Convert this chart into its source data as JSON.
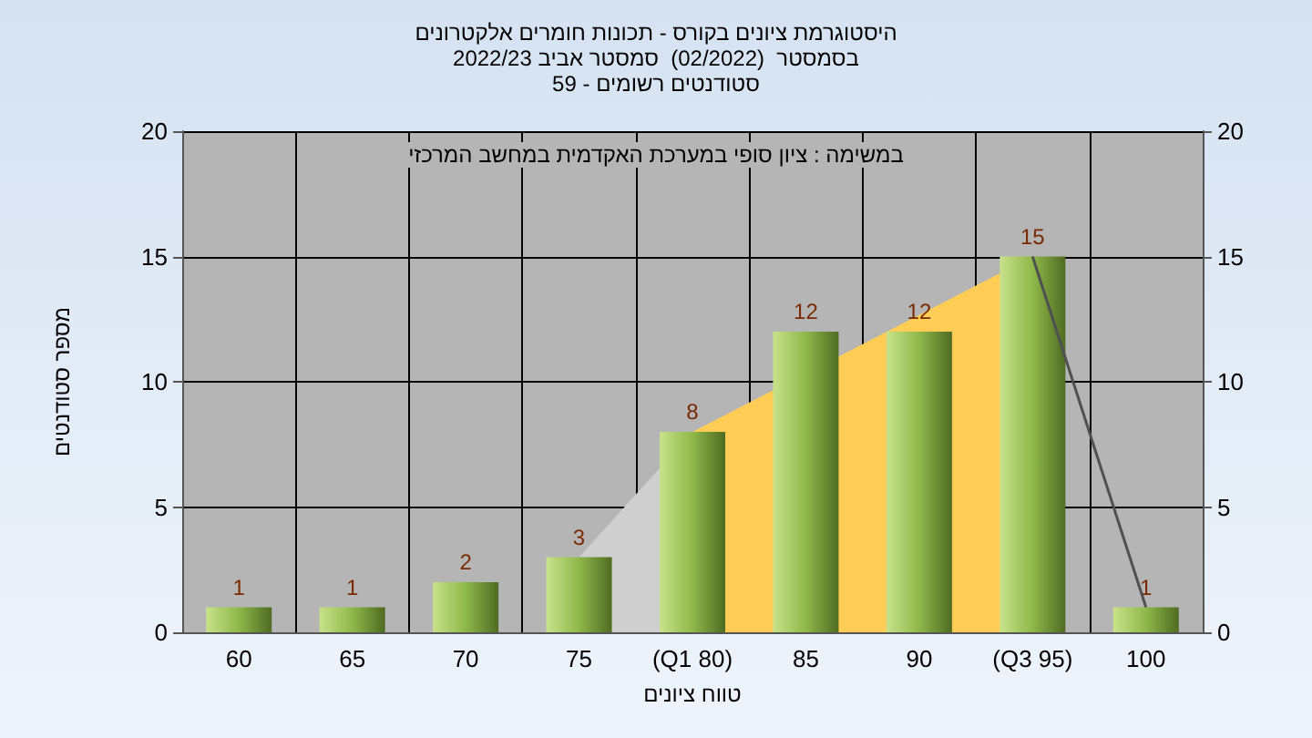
{
  "chart_data": {
    "type": "bar",
    "title": "היסטוגרמת ציונים בקורס - תכונות חומרים אלקטרונים",
    "subtitle": "בסמסטר  (02/2022)  סמסטר אביב 2022/23\nסטודנטים רשומים - 59",
    "xlabel": "טווח ציונים",
    "ylabel": "מספר סטודנטים",
    "annotations": [
      "במשימה : ציון סופי במערכת האקדמית במחשב המרכזי"
    ],
    "categories": [
      "60",
      "65",
      "70",
      "75",
      "(Q1 80)",
      "85",
      "90",
      "(Q3 95)",
      "100"
    ],
    "series": [
      {
        "type": "area",
        "color": "#cfcfcf",
        "values": [
          null,
          null,
          null,
          3,
          8,
          null,
          null,
          null,
          null
        ]
      },
      {
        "type": "area",
        "color": "#ffcc55",
        "values": [
          null,
          null,
          null,
          null,
          8,
          null,
          null,
          15,
          null
        ]
      },
      {
        "type": "line",
        "color": "#505050",
        "values": [
          null,
          null,
          null,
          null,
          null,
          null,
          null,
          15,
          1
        ]
      },
      {
        "color": "#8fb84a",
        "values": [
          1,
          1,
          2,
          3,
          8,
          12,
          12,
          15,
          1
        ],
        "value_labels": [
          "1",
          "1",
          "2",
          "3",
          "8",
          "12",
          "12",
          "15",
          "1"
        ]
      }
    ],
    "ylim": [
      0,
      20
    ],
    "yticks": [
      0,
      5,
      10,
      15,
      20
    ],
    "y2lim": [
      0,
      20
    ],
    "y2ticks": [
      0,
      5,
      10,
      15,
      20
    ],
    "grid": true
  }
}
